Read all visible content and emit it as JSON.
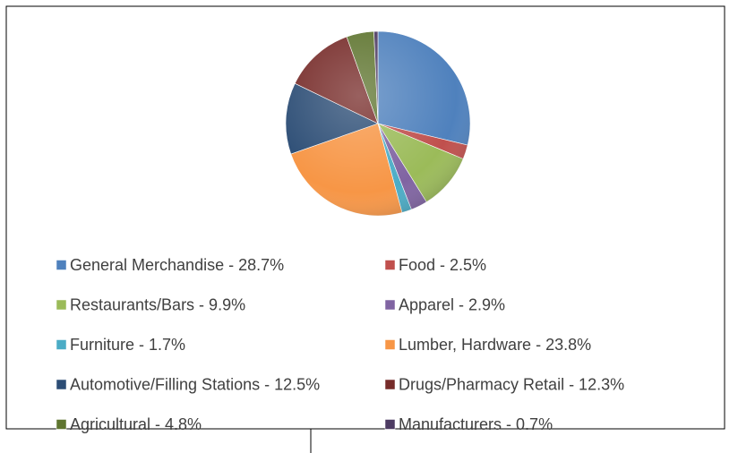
{
  "chart_data": {
    "type": "pie",
    "categories": [
      "General Merchandise - 28.7%",
      "Food - 2.5%",
      "Restaurants/Bars - 9.9%",
      "Apparel - 2.9%",
      "Furniture - 1.7%",
      "Lumber, Hardware - 23.8%",
      "Automotive/Filling Stations - 12.5%",
      "Drugs/Pharmacy Retail - 12.3%",
      "Agricultural - 4.8%",
      "Manufacturers - 0.7%"
    ],
    "values": [
      28.7,
      2.5,
      9.9,
      2.9,
      1.7,
      23.8,
      12.5,
      12.3,
      4.8,
      0.7
    ],
    "colors": [
      "#4f81bd",
      "#c0504d",
      "#9bbb59",
      "#8064a2",
      "#4bacc6",
      "#f79646",
      "#2c4d75",
      "#772c2a",
      "#5f7530",
      "#4d3b62"
    ],
    "legend": "bottom"
  }
}
